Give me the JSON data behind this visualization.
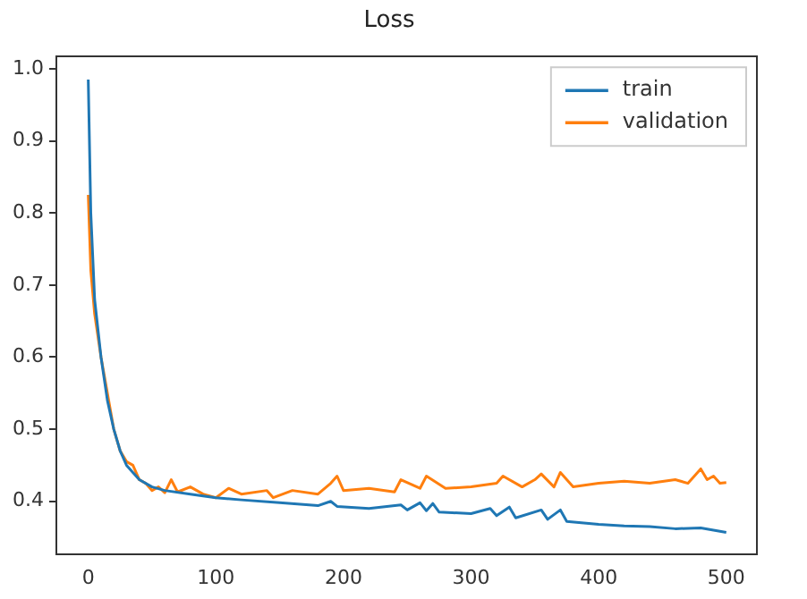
{
  "chart_data": {
    "type": "line",
    "title": "Loss",
    "xlim": [
      -25,
      524
    ],
    "ylim": [
      0.327,
      1.017
    ],
    "xticks": [
      0,
      100,
      200,
      300,
      400,
      500
    ],
    "yticks": [
      0.4,
      0.5,
      0.6,
      0.7,
      0.8,
      0.9,
      {
        "value": 1,
        "label": "1.0"
      }
    ],
    "legend": "top right",
    "grid": false,
    "marker": "none",
    "line_style": "solid",
    "series": [
      {
        "name": "train",
        "color": "#1f77b4",
        "x": [
          0,
          2,
          5,
          10,
          15,
          20,
          25,
          30,
          35,
          40,
          50,
          60,
          80,
          100,
          120,
          150,
          180,
          190,
          195,
          220,
          245,
          250,
          260,
          265,
          270,
          275,
          300,
          315,
          320,
          330,
          335,
          355,
          360,
          370,
          375,
          400,
          420,
          440,
          460,
          480,
          490,
          500
        ],
        "values": [
          0.985,
          0.8,
          0.68,
          0.6,
          0.54,
          0.5,
          0.47,
          0.45,
          0.44,
          0.43,
          0.42,
          0.415,
          0.41,
          0.405,
          0.402,
          0.398,
          0.394,
          0.4,
          0.393,
          0.39,
          0.395,
          0.388,
          0.398,
          0.387,
          0.397,
          0.385,
          0.383,
          0.39,
          0.38,
          0.392,
          0.377,
          0.388,
          0.375,
          0.388,
          0.372,
          0.368,
          0.366,
          0.365,
          0.362,
          0.363,
          0.36,
          0.357
        ]
      },
      {
        "name": "validation",
        "color": "#ff7f0e",
        "x": [
          0,
          2,
          5,
          10,
          15,
          20,
          25,
          30,
          35,
          40,
          45,
          50,
          55,
          60,
          65,
          70,
          80,
          90,
          100,
          110,
          120,
          140,
          145,
          160,
          180,
          190,
          195,
          200,
          220,
          240,
          245,
          260,
          265,
          280,
          300,
          320,
          325,
          340,
          350,
          355,
          365,
          370,
          380,
          400,
          420,
          440,
          460,
          470,
          480,
          485,
          490,
          495,
          500
        ],
        "values": [
          0.825,
          0.72,
          0.66,
          0.6,
          0.55,
          0.5,
          0.47,
          0.455,
          0.45,
          0.43,
          0.425,
          0.415,
          0.42,
          0.412,
          0.43,
          0.413,
          0.42,
          0.41,
          0.405,
          0.418,
          0.41,
          0.415,
          0.405,
          0.415,
          0.41,
          0.425,
          0.435,
          0.415,
          0.418,
          0.413,
          0.43,
          0.418,
          0.435,
          0.418,
          0.42,
          0.425,
          0.435,
          0.42,
          0.43,
          0.438,
          0.42,
          0.44,
          0.42,
          0.425,
          0.428,
          0.425,
          0.43,
          0.425,
          0.445,
          0.43,
          0.435,
          0.425,
          0.426
        ]
      }
    ]
  }
}
